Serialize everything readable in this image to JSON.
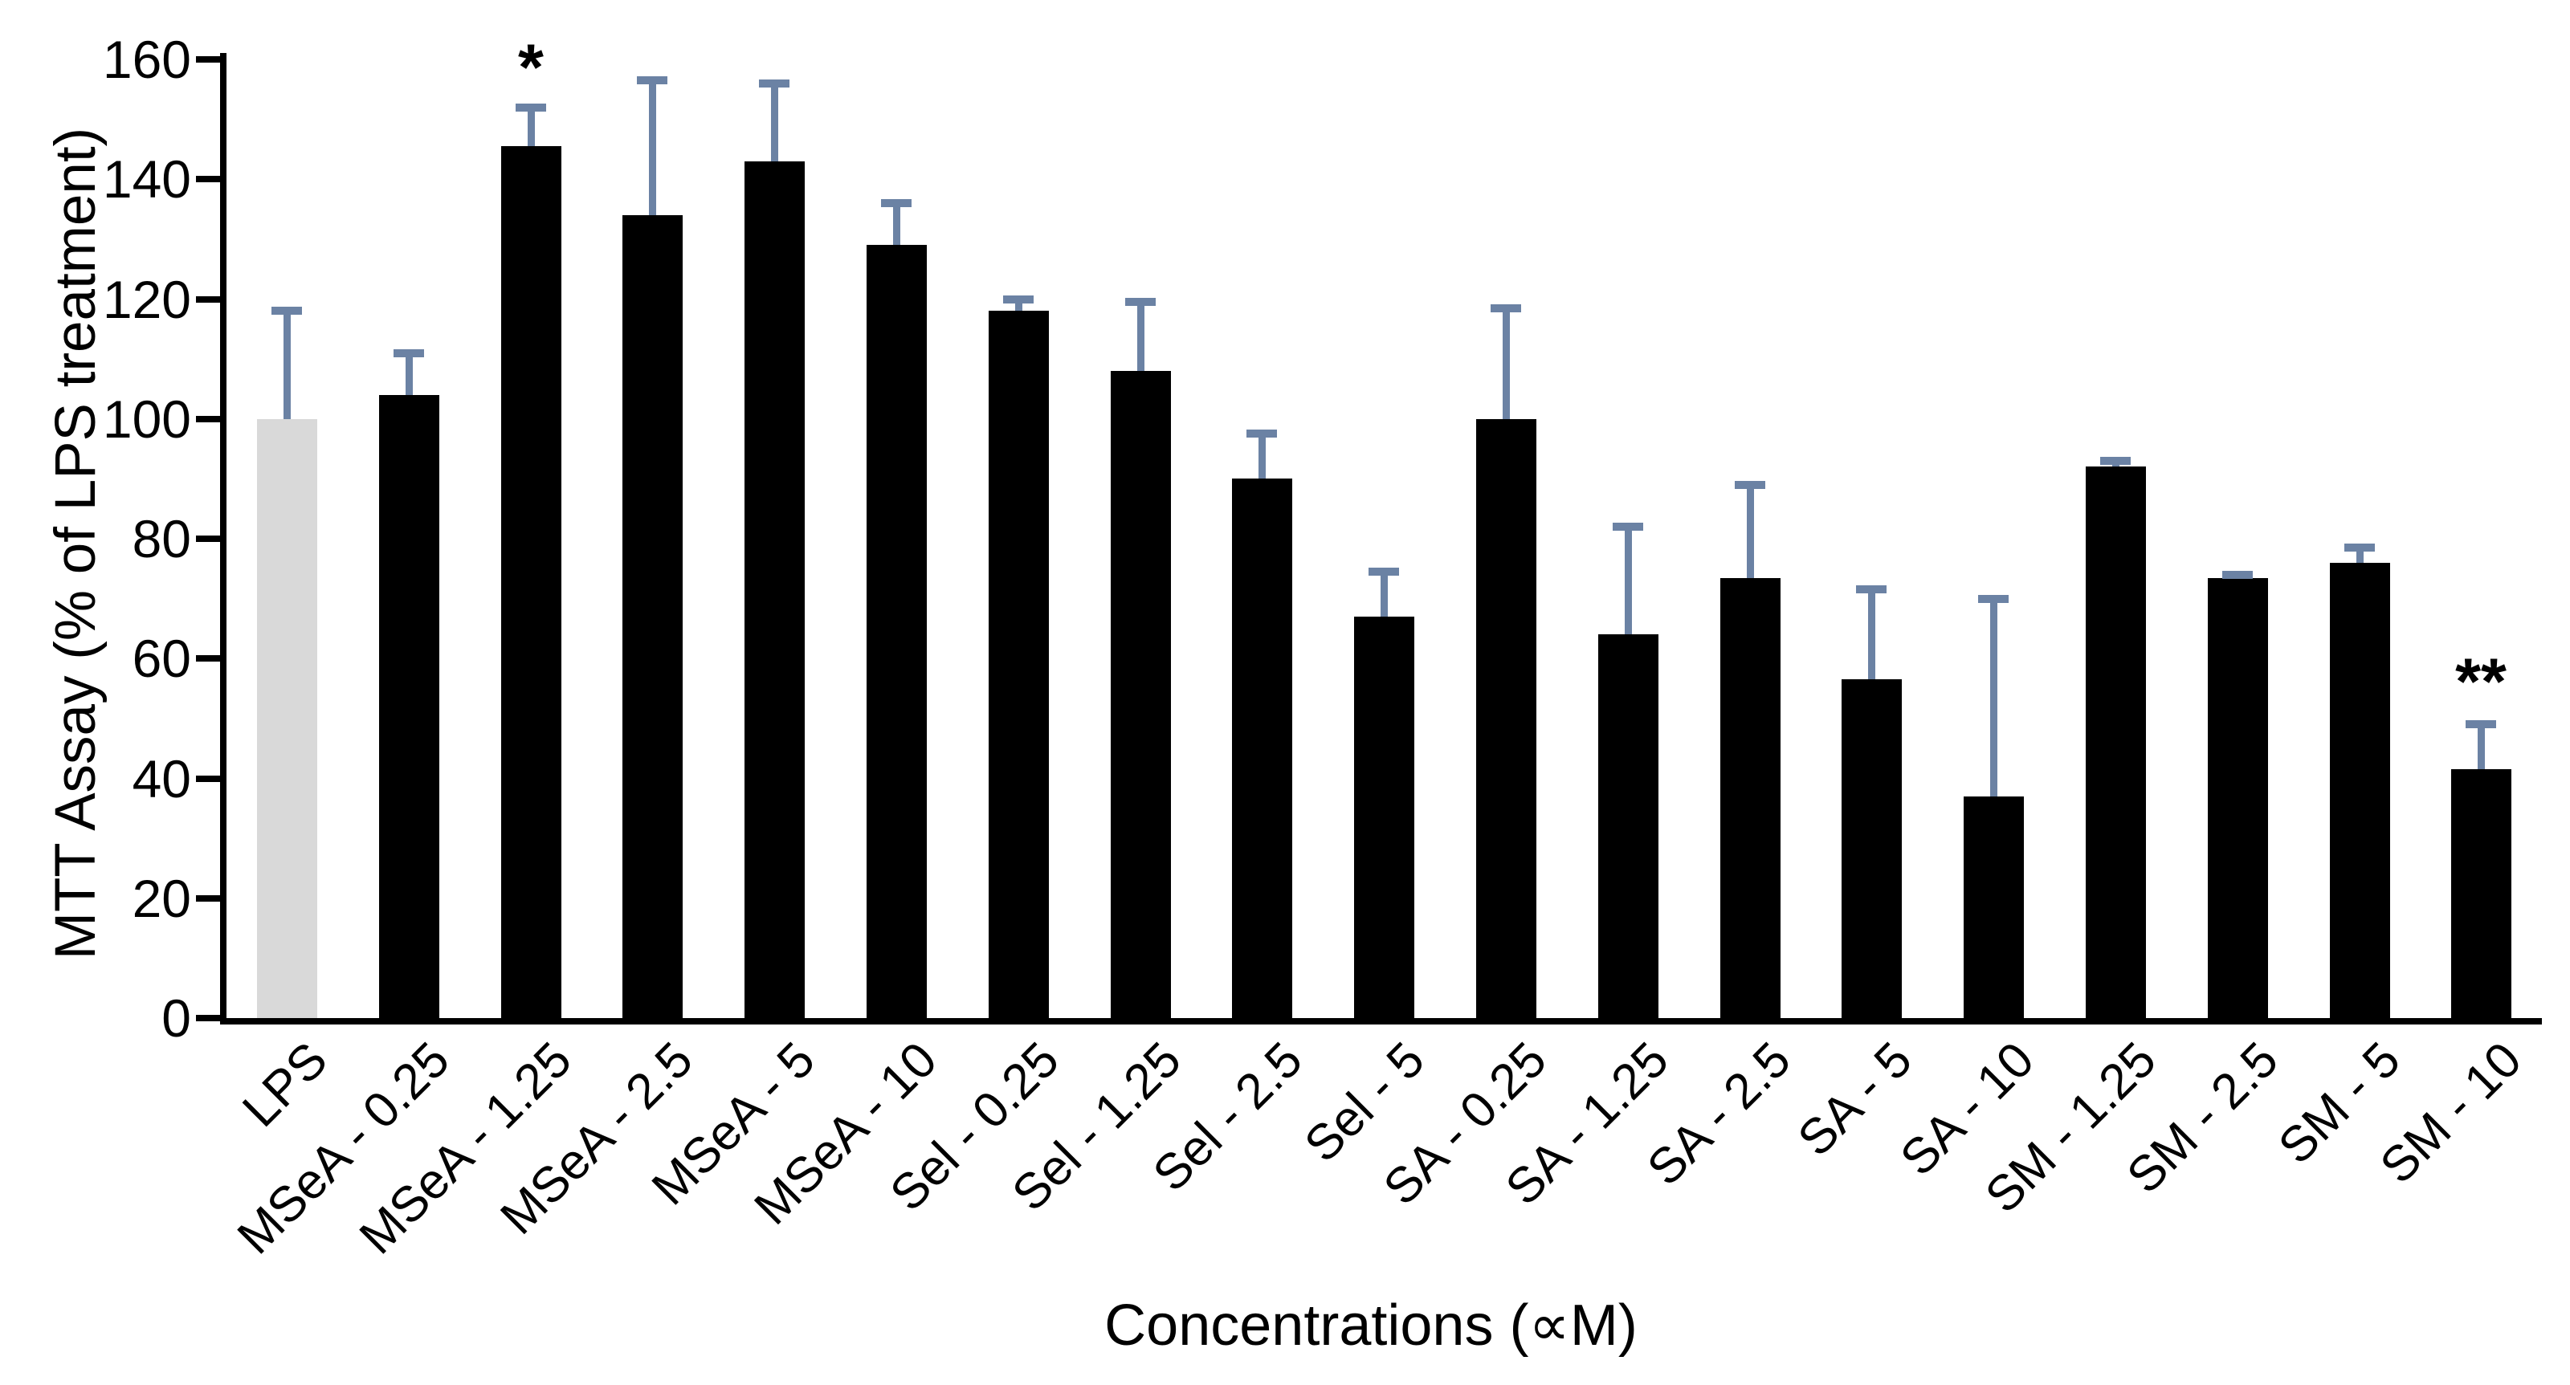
{
  "chart_data": {
    "type": "bar",
    "title": "",
    "xlabel": "Concentrations (∝M)",
    "ylabel": "MTT Assay (% of LPS treatment)",
    "ylim": [
      0,
      160
    ],
    "ytick_step": 20,
    "grid": false,
    "legend": "none",
    "categories": [
      "LPS",
      "MSeA - 0.25",
      "MSeA - 1.25",
      "MSeA - 2.5",
      "MSeA - 5",
      "MSeA - 10",
      "Sel - 0.25",
      "Sel - 1.25",
      "Sel - 2.5",
      "Sel - 5",
      "SA - 0.25",
      "SA - 1.25",
      "SA - 2.5",
      "SA - 5",
      "SA - 10",
      "SM - 1.25",
      "SM - 2.5",
      "SM - 5",
      "SM - 10"
    ],
    "values": [
      100,
      104,
      145.5,
      134,
      143,
      129,
      118,
      108,
      90,
      67,
      100,
      64,
      73.5,
      56.5,
      37,
      92,
      73.5,
      76,
      41.5
    ],
    "error_upper": [
      18,
      7,
      6.5,
      22.5,
      13,
      7,
      2,
      11.5,
      7.5,
      7.5,
      18.5,
      18,
      15.5,
      15,
      33,
      1,
      0.5,
      2.5,
      7.5
    ],
    "bar_color": "#000000",
    "control_bar_index": 0,
    "control_bar_color": "#d9d9d9",
    "error_bar_color": "#6b82a4",
    "axis_color": "#000000",
    "annotations": [
      {
        "text": "*",
        "category": "MSeA - 1.25",
        "y_value": 158.5
      },
      {
        "text": "**",
        "category": "SM - 10",
        "y_value": 56
      }
    ]
  }
}
